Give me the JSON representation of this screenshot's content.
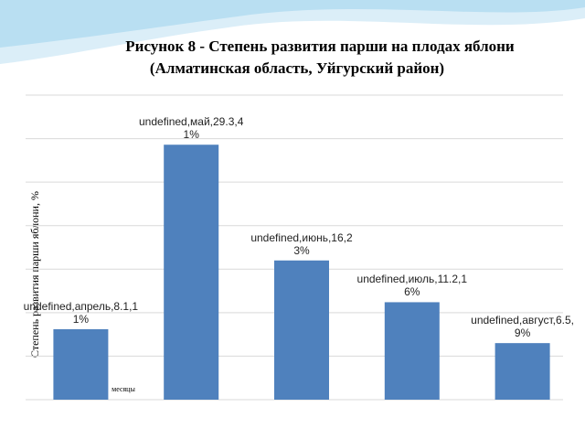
{
  "chart_data": {
    "type": "bar",
    "title": "Рисунок 8 - Степень развития парши на плодах яблони",
    "subtitle": "(Алматинская область, Уйгурский район)",
    "y_label": "Степень развития парши яблони, %",
    "x_label": "месяцы",
    "values": [
      8.1,
      29.3,
      16,
      11.2,
      6.5
    ],
    "value_labels": [
      "undefined,апрель,8.1,11%",
      "undefined,май,29.3,41%",
      "undefined,июнь,16,23%",
      "undefined,июль,11.2,16%",
      "undefined,август,6.5,9%"
    ],
    "color": "#4f81bd",
    "ylim": [
      0,
      35
    ],
    "grid_values": [
      0,
      5,
      10,
      15,
      20,
      25,
      30,
      35
    ],
    "grid": true
  }
}
